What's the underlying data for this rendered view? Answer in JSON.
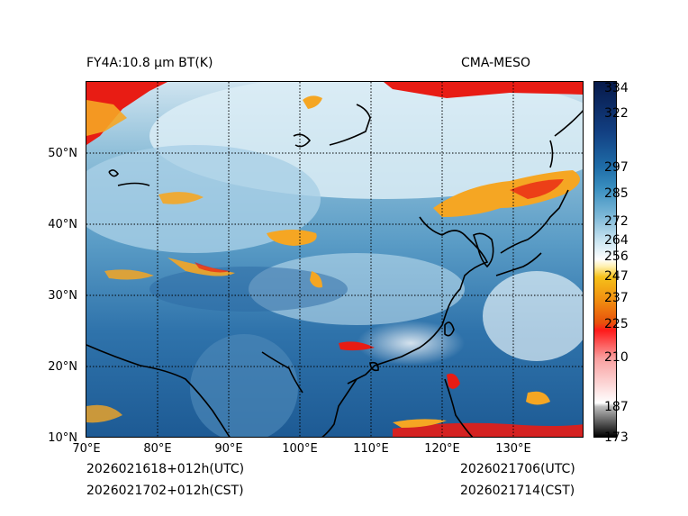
{
  "title": {
    "product": "FY4A:10.8 µm BT(K)",
    "model": "CMA-MESO"
  },
  "time": {
    "init_utc": "2026021618+012h(UTC)",
    "init_cst": "2026021702+012h(CST)",
    "valid_utc": "2026021706(UTC)",
    "valid_cst": "2026021714(CST)"
  },
  "axes": {
    "lon_ticks": [
      "70°E",
      "80°E",
      "90°E",
      "100°E",
      "110°E",
      "120°E",
      "130°E"
    ],
    "lat_ticks": [
      "10°N",
      "20°N",
      "30°N",
      "40°N",
      "50°N"
    ],
    "lon_range": [
      70,
      140
    ],
    "lat_range": [
      10,
      60
    ]
  },
  "colorbar": {
    "ticks": [
      "173",
      "187",
      "210",
      "225",
      "237",
      "247",
      "256",
      "264",
      "272",
      "285",
      "297",
      "322",
      "334"
    ],
    "range": [
      173,
      337
    ]
  },
  "colors": {
    "ocean": "#1f5a96",
    "land": "#3d80b3",
    "cloud_cold": "#f5a623",
    "cloud_red": "#e81c14",
    "high_cloud": "#d9ecf5"
  }
}
